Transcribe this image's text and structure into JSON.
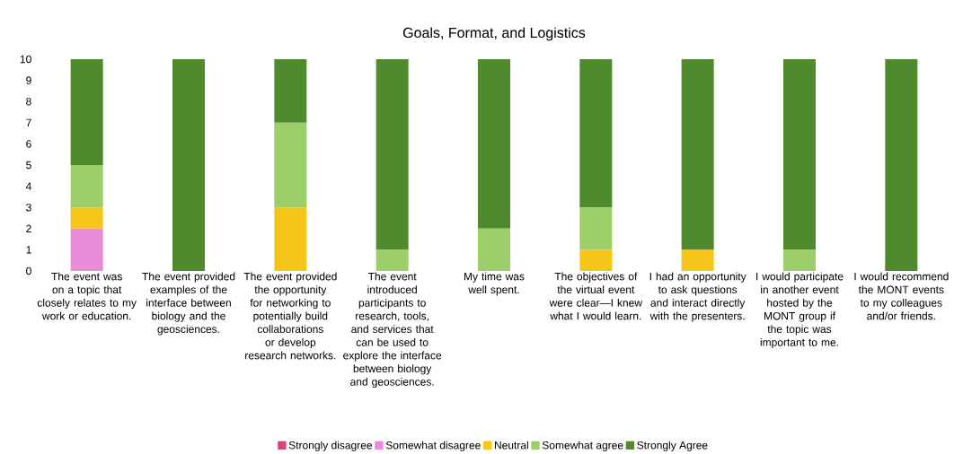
{
  "chart_data": {
    "type": "bar",
    "title": "Goals, Format, and Logistics",
    "stacked": true,
    "legend": "bottom",
    "categories": [
      "The event was on a topic that closely relates to my work or education.",
      "The event provided examples of the interface between biology and the geosciences.",
      "The event provided the opportunity for networking to potentially build collaborations or develop research networks.",
      "The event introduced participants to research, tools, and services that can be used to explore the interface between biology and geosciences.",
      "My time was well spent.",
      "The objectives of the virtual event were clear—I knew what I would learn.",
      "I had an opportunity to ask questions and interact directly with the presenters.",
      "I would participate in another event hosted by the MONT group if the topic was important to me.",
      "I would recommend the MONT events to my colleagues and/or friends."
    ],
    "series": [
      {
        "name": "Strongly disagree",
        "color": "#d9466f",
        "values": [
          0,
          0,
          0,
          0,
          0,
          0,
          0,
          0,
          0
        ]
      },
      {
        "name": "Somewhat disagree",
        "color": "#e98bd9",
        "values": [
          2,
          0,
          0,
          0,
          0,
          0,
          0,
          0,
          0
        ]
      },
      {
        "name": "Neutral",
        "color": "#f5c518",
        "values": [
          1,
          0,
          3,
          0,
          0,
          1,
          1,
          0,
          0
        ]
      },
      {
        "name": "Somewhat agree",
        "color": "#9ccf6a",
        "values": [
          2,
          0,
          4,
          1,
          2,
          2,
          0,
          1,
          0
        ]
      },
      {
        "name": "Strongly Agree",
        "color": "#4f8a2c",
        "values": [
          5,
          10,
          3,
          9,
          8,
          7,
          9,
          9,
          10
        ]
      }
    ],
    "ylim": [
      0,
      10
    ],
    "yticks": [
      0,
      1,
      2,
      3,
      4,
      5,
      6,
      7,
      8,
      9,
      10
    ]
  }
}
